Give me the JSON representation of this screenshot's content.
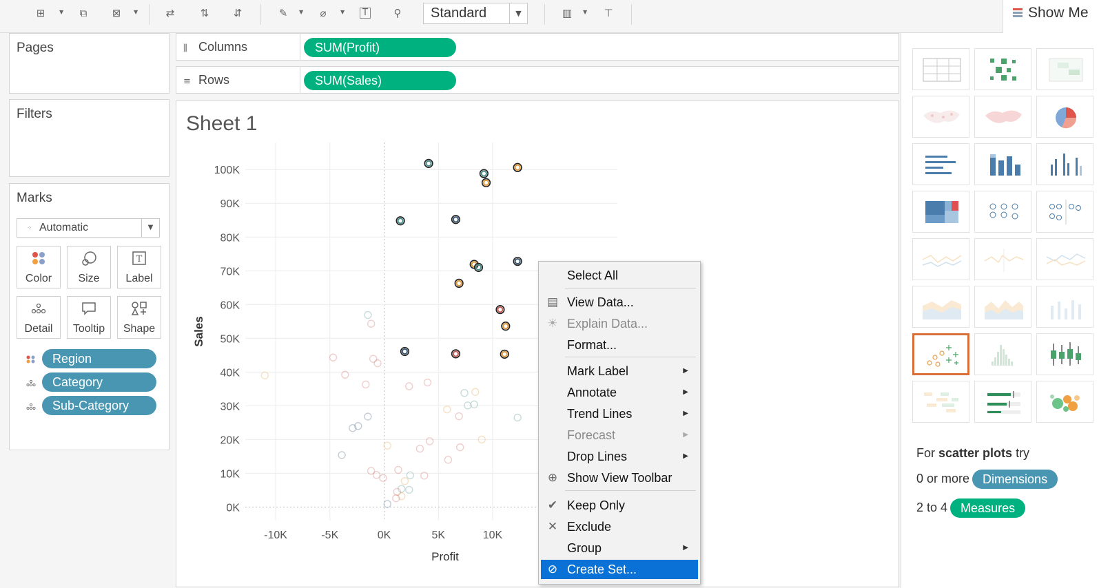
{
  "toolbar": {
    "fit_mode": "Standard",
    "show_me_label": "Show Me"
  },
  "left_panel": {
    "pages_title": "Pages",
    "filters_title": "Filters",
    "marks_title": "Marks",
    "mark_type": "Automatic",
    "mark_buttons": [
      "Color",
      "Size",
      "Label",
      "Detail",
      "Tooltip",
      "Shape"
    ],
    "mark_pills": [
      {
        "label": "Region",
        "encoding": "color"
      },
      {
        "label": "Category",
        "encoding": "detail"
      },
      {
        "label": "Sub-Category",
        "encoding": "detail"
      }
    ]
  },
  "shelves": {
    "columns_label": "Columns",
    "columns_pill": "SUM(Profit)",
    "rows_label": "Rows",
    "rows_pill": "SUM(Sales)"
  },
  "sheet": {
    "title": "Sheet 1"
  },
  "chart_data": {
    "type": "scatter",
    "xlabel": "Profit",
    "ylabel": "Sales",
    "x_ticks": [
      "-10K",
      "-5K",
      "0K",
      "5K",
      "10K"
    ],
    "y_ticks": [
      "0K",
      "10K",
      "20K",
      "30K",
      "40K",
      "50K",
      "60K",
      "70K",
      "80K",
      "90K",
      "100K"
    ],
    "xlim": [
      -12800,
      21500
    ],
    "ylim": [
      -4000,
      108000
    ],
    "grid": true,
    "highlighted_points": [
      {
        "x": 4100,
        "y": 101800,
        "color": "#4d8f8c"
      },
      {
        "x": 9200,
        "y": 98800,
        "color": "#4d8f8c"
      },
      {
        "x": 12300,
        "y": 100600,
        "color": "#e09a3c"
      },
      {
        "x": 9400,
        "y": 96100,
        "color": "#e09a3c"
      },
      {
        "x": 1500,
        "y": 84800,
        "color": "#4d8f8c"
      },
      {
        "x": 6600,
        "y": 85200,
        "color": "#3d5b78"
      },
      {
        "x": 12300,
        "y": 72800,
        "color": "#3d5b78"
      },
      {
        "x": 8300,
        "y": 71900,
        "color": "#e09a3c"
      },
      {
        "x": 8700,
        "y": 71000,
        "color": "#4d8f8c"
      },
      {
        "x": 6900,
        "y": 66300,
        "color": "#e09a3c"
      },
      {
        "x": 10700,
        "y": 58500,
        "color": "#c65f5a"
      },
      {
        "x": 11200,
        "y": 53600,
        "color": "#e09a3c"
      },
      {
        "x": 1900,
        "y": 46100,
        "color": "#3d5b78"
      },
      {
        "x": 6600,
        "y": 45400,
        "color": "#c65f5a"
      },
      {
        "x": 11100,
        "y": 45300,
        "color": "#e09a3c"
      }
    ],
    "faded_points": [
      {
        "x": -11000,
        "y": 39000,
        "color": "#e09a3c"
      },
      {
        "x": -4700,
        "y": 44300,
        "color": "#c65f5a"
      },
      {
        "x": -3600,
        "y": 39200,
        "color": "#c65f5a"
      },
      {
        "x": -1200,
        "y": 54300,
        "color": "#c65f5a"
      },
      {
        "x": -1500,
        "y": 56900,
        "color": "#4d8f8c"
      },
      {
        "x": -1000,
        "y": 43900,
        "color": "#c65f5a"
      },
      {
        "x": -600,
        "y": 42600,
        "color": "#c65f5a"
      },
      {
        "x": -1700,
        "y": 36300,
        "color": "#c65f5a"
      },
      {
        "x": -1500,
        "y": 26800,
        "color": "#3d5b78"
      },
      {
        "x": -2400,
        "y": 24000,
        "color": "#3d5b78"
      },
      {
        "x": -2900,
        "y": 23400,
        "color": "#3d5b78"
      },
      {
        "x": -3900,
        "y": 15400,
        "color": "#3d5b78"
      },
      {
        "x": -1200,
        "y": 10700,
        "color": "#c65f5a"
      },
      {
        "x": -700,
        "y": 9500,
        "color": "#c65f5a"
      },
      {
        "x": -100,
        "y": 8600,
        "color": "#c65f5a"
      },
      {
        "x": 2300,
        "y": 35800,
        "color": "#c65f5a"
      },
      {
        "x": 4000,
        "y": 36900,
        "color": "#c65f5a"
      },
      {
        "x": 300,
        "y": 18200,
        "color": "#e09a3c"
      },
      {
        "x": 1300,
        "y": 11000,
        "color": "#c65f5a"
      },
      {
        "x": 1900,
        "y": 7700,
        "color": "#e09a3c"
      },
      {
        "x": 2400,
        "y": 9400,
        "color": "#4d8f8c"
      },
      {
        "x": 1600,
        "y": 5400,
        "color": "#4d8f8c"
      },
      {
        "x": 2300,
        "y": 5100,
        "color": "#4d8f8c"
      },
      {
        "x": 1200,
        "y": 4500,
        "color": "#c65f5a"
      },
      {
        "x": 1600,
        "y": 3200,
        "color": "#e09a3c"
      },
      {
        "x": 1100,
        "y": 2600,
        "color": "#c65f5a"
      },
      {
        "x": 300,
        "y": 900,
        "color": "#3d5b78"
      },
      {
        "x": 3300,
        "y": 17300,
        "color": "#c65f5a"
      },
      {
        "x": 4200,
        "y": 19500,
        "color": "#c65f5a"
      },
      {
        "x": 3700,
        "y": 9300,
        "color": "#c65f5a"
      },
      {
        "x": 5800,
        "y": 28900,
        "color": "#e09a3c"
      },
      {
        "x": 6900,
        "y": 26900,
        "color": "#c65f5a"
      },
      {
        "x": 7400,
        "y": 33800,
        "color": "#4d8f8c"
      },
      {
        "x": 7700,
        "y": 30100,
        "color": "#4d8f8c"
      },
      {
        "x": 8300,
        "y": 30400,
        "color": "#4d8f8c"
      },
      {
        "x": 8400,
        "y": 34100,
        "color": "#e09a3c"
      },
      {
        "x": 7000,
        "y": 17700,
        "color": "#c65f5a"
      },
      {
        "x": 5900,
        "y": 14000,
        "color": "#c65f5a"
      },
      {
        "x": 9000,
        "y": 20000,
        "color": "#e09a3c"
      },
      {
        "x": 12300,
        "y": 26500,
        "color": "#4d8f8c"
      }
    ]
  },
  "context_menu": {
    "items": [
      {
        "label": "Select All",
        "icon": "",
        "arrow": false,
        "disabled": false
      },
      {
        "label": "View Data...",
        "icon": "table-icon",
        "arrow": false,
        "disabled": false
      },
      {
        "label": "Explain Data...",
        "icon": "lightbulb-icon",
        "arrow": false,
        "disabled": true
      },
      {
        "label": "Format...",
        "icon": "",
        "arrow": false,
        "disabled": false
      },
      {
        "label": "Mark Label",
        "icon": "",
        "arrow": true,
        "disabled": false
      },
      {
        "label": "Annotate",
        "icon": "",
        "arrow": true,
        "disabled": false
      },
      {
        "label": "Trend Lines",
        "icon": "",
        "arrow": true,
        "disabled": false
      },
      {
        "label": "Forecast",
        "icon": "",
        "arrow": true,
        "disabled": true
      },
      {
        "label": "Drop Lines",
        "icon": "",
        "arrow": true,
        "disabled": false
      },
      {
        "label": "Show View Toolbar",
        "icon": "zoom-icon",
        "arrow": false,
        "disabled": false
      },
      {
        "label": "Keep Only",
        "icon": "check-icon",
        "arrow": false,
        "disabled": false
      },
      {
        "label": "Exclude",
        "icon": "x-icon",
        "arrow": false,
        "disabled": false
      },
      {
        "label": "Group",
        "icon": "",
        "arrow": true,
        "disabled": false
      },
      {
        "label": "Create Set...",
        "icon": "set-icon",
        "arrow": false,
        "disabled": false,
        "highlighted": true
      }
    ]
  },
  "show_me": {
    "hint_prefix": "For ",
    "hint_bold": "scatter plots",
    "hint_suffix": " try",
    "dims_prefix": "0 or more",
    "dims_pill": "Dimensions",
    "measures_prefix": "2 to 4",
    "measures_pill": "Measures",
    "colors": {
      "dimension_pill": "#4996b2",
      "measure_pill": "#00b180",
      "selected_outline": "#d9703a"
    }
  }
}
